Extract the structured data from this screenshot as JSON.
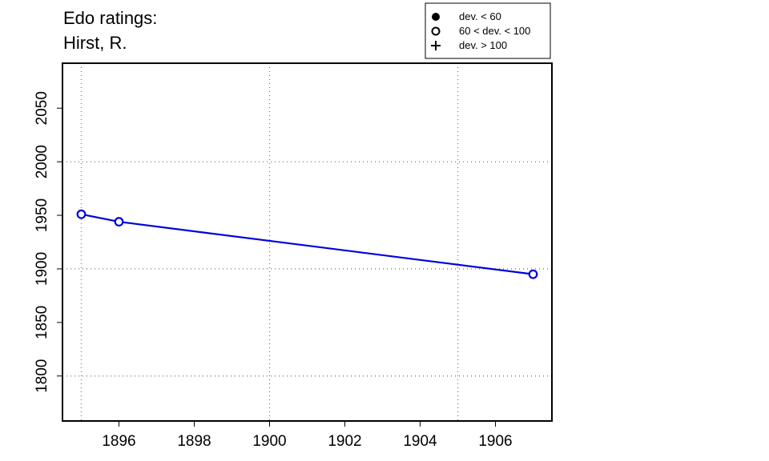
{
  "chart_data": {
    "type": "line",
    "title_lines": [
      "Edo ratings:",
      "Hirst, R."
    ],
    "xlabel": "",
    "ylabel": "",
    "xlim": [
      1894.5,
      1907.5
    ],
    "ylim": [
      1758,
      2092
    ],
    "x_ticks": [
      1896,
      1898,
      1900,
      1902,
      1904,
      1906
    ],
    "y_ticks": [
      1800,
      1850,
      1900,
      1950,
      2000,
      2050
    ],
    "x_grid": [
      1895,
      1900,
      1905
    ],
    "y_grid": [
      1800,
      1900,
      2000
    ],
    "grid": "dotted",
    "series": [
      {
        "color": "#0000dd",
        "marker": "open-circle",
        "points": [
          {
            "x": 1895,
            "y": 1951
          },
          {
            "x": 1896,
            "y": 1944
          },
          {
            "x": 1907,
            "y": 1895
          }
        ]
      }
    ],
    "legend": {
      "position": "top-right",
      "entries": [
        {
          "symbol": "filled-circle",
          "label": "dev. < 60"
        },
        {
          "symbol": "open-circle",
          "label": "60 < dev. < 100"
        },
        {
          "symbol": "plus",
          "label": "dev. > 100"
        }
      ]
    }
  }
}
